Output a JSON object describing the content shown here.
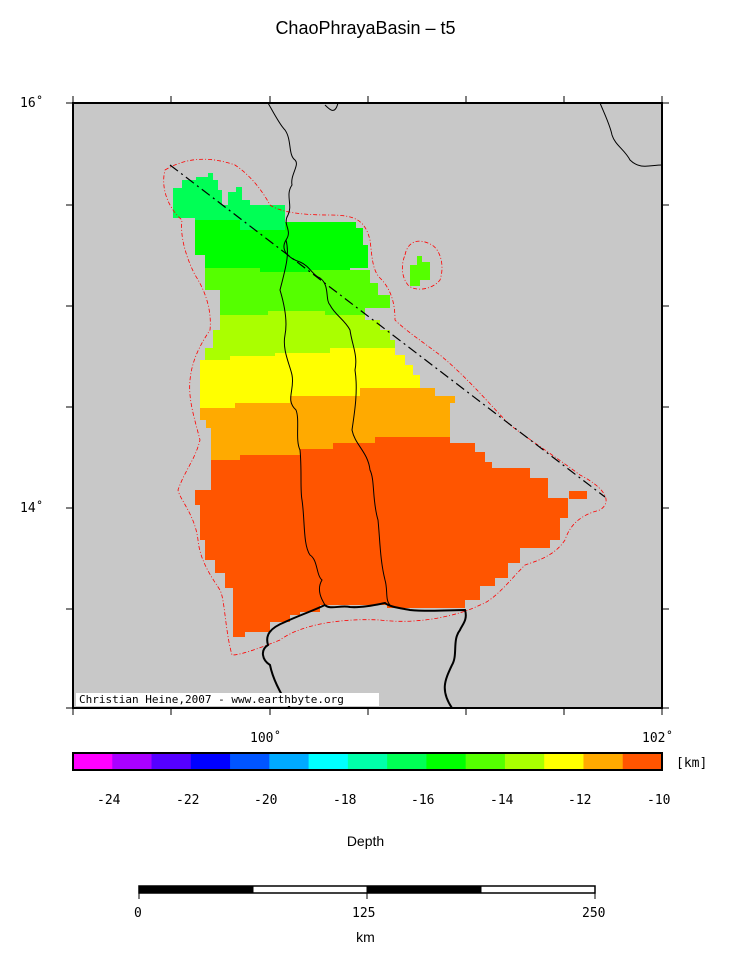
{
  "title": "ChaoPhrayaBasin – t5",
  "map": {
    "lat_labels": [
      "16˚",
      "14˚"
    ],
    "lon_labels": [
      "100˚",
      "102˚"
    ],
    "credit": "Christian Heine,2007 - www.earthbyte.org",
    "colors": {
      "land": "#c8c8c8",
      "outline": "#ff0000",
      "river": "#000000",
      "deep_orange": "#ff5500",
      "orange": "#ffaa00",
      "yellow": "#ffff00",
      "yellow_green": "#aaff00",
      "green_light": "#55ff00",
      "green": "#00ff00",
      "spring_green": "#00ff55"
    }
  },
  "colorbar": {
    "unit": "[km]",
    "label": "Depth",
    "ticks": [
      "-24",
      "-22",
      "-20",
      "-18",
      "-16",
      "-14",
      "-12",
      "-10"
    ],
    "colors": [
      "#ff00ff",
      "#aa00ff",
      "#5500ff",
      "#0000ff",
      "#0055ff",
      "#00aaff",
      "#00ffff",
      "#00ffaa",
      "#00ff55",
      "#00ff00",
      "#55ff00",
      "#aaff00",
      "#ffff00",
      "#ffaa00",
      "#ff5500"
    ]
  },
  "scalebar": {
    "ticks": [
      "0",
      "125",
      "250"
    ],
    "unit": "km"
  }
}
